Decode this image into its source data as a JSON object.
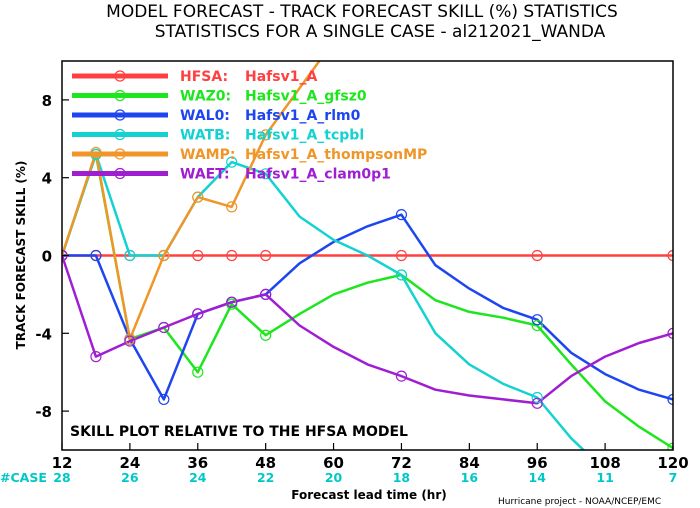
{
  "chart_data": {
    "type": "line",
    "title": "MODEL FORECAST - TRACK FORECAST SKILL (%) STATISTICS",
    "subtitle": "STATISTISCS FOR A SINGLE CASE - al212021_WANDA",
    "xlabel": "Forecast lead time (hr)",
    "ylabel": "TRACK FORECAST SKILL (%)",
    "xlim": [
      12,
      120
    ],
    "ylim": [
      -10,
      10
    ],
    "xticks": [
      12,
      24,
      36,
      48,
      60,
      72,
      84,
      96,
      108,
      120
    ],
    "yticks": [
      -8,
      -4,
      0,
      4,
      8
    ],
    "grid": false,
    "legend_position": "top-left",
    "case_label": "#CASE",
    "case_counts": [
      {
        "x": 12,
        "n": "28"
      },
      {
        "x": 24,
        "n": "26"
      },
      {
        "x": 36,
        "n": "24"
      },
      {
        "x": 48,
        "n": "22"
      },
      {
        "x": 60,
        "n": "20"
      },
      {
        "x": 72,
        "n": "18"
      },
      {
        "x": 84,
        "n": "16"
      },
      {
        "x": 96,
        "n": "14"
      },
      {
        "x": 108,
        "n": "11"
      },
      {
        "x": 120,
        "n": "7"
      }
    ],
    "annotation": "SKILL PLOT RELATIVE TO THE HFSA MODEL",
    "credit": "Hurricane project - NOAA/NCEP/EMC",
    "series": [
      {
        "code": "HFSA",
        "name": "Hafsv1_A",
        "color": "#ff4040",
        "points": [
          [
            12,
            0
          ],
          [
            18,
            0
          ],
          [
            24,
            0
          ],
          [
            30,
            0
          ],
          [
            36,
            0
          ],
          [
            42,
            0
          ],
          [
            48,
            0
          ],
          [
            60,
            0
          ],
          [
            72,
            0
          ],
          [
            96,
            0
          ],
          [
            120,
            0
          ]
        ],
        "markers": [
          12,
          18,
          24,
          30,
          36,
          42,
          48,
          72,
          96,
          120
        ]
      },
      {
        "code": "WAZ0",
        "name": "Hafsv1_A_gfsz0",
        "color": "#1ee61e",
        "points": [
          [
            12,
            0
          ],
          [
            18,
            5.2
          ],
          [
            24,
            -4.3
          ],
          [
            30,
            -3.7
          ],
          [
            36,
            -6
          ],
          [
            42,
            -2.5
          ],
          [
            48,
            -4.1
          ],
          [
            54,
            -3
          ],
          [
            60,
            -2
          ],
          [
            66,
            -1.4
          ],
          [
            72,
            -1
          ],
          [
            78,
            -2.3
          ],
          [
            84,
            -2.9
          ],
          [
            90,
            -3.2
          ],
          [
            96,
            -3.6
          ],
          [
            102,
            -5.6
          ],
          [
            108,
            -7.5
          ],
          [
            114,
            -8.8
          ],
          [
            120,
            -9.9
          ]
        ],
        "markers": [
          12,
          18,
          24,
          30,
          36,
          42,
          48,
          72,
          96,
          120
        ]
      },
      {
        "code": "WAL0",
        "name": "Hafsv1_A_rlm0",
        "color": "#1e46f0",
        "points": [
          [
            12,
            0
          ],
          [
            18,
            0
          ],
          [
            24,
            -4.3
          ],
          [
            30,
            -7.4
          ],
          [
            36,
            -3
          ],
          [
            42,
            -2.4
          ],
          [
            48,
            -2
          ],
          [
            54,
            -0.4
          ],
          [
            60,
            0.7
          ],
          [
            66,
            1.5
          ],
          [
            72,
            2.1
          ],
          [
            78,
            -0.5
          ],
          [
            84,
            -1.7
          ],
          [
            90,
            -2.7
          ],
          [
            96,
            -3.3
          ],
          [
            102,
            -5
          ],
          [
            108,
            -6.1
          ],
          [
            114,
            -6.9
          ],
          [
            120,
            -7.4
          ]
        ],
        "markers": [
          12,
          18,
          24,
          30,
          36,
          42,
          48,
          72,
          96,
          120
        ]
      },
      {
        "code": "WATB",
        "name": "Hafsv1_A_tcpbl",
        "color": "#14d2d2",
        "points": [
          [
            12,
            0
          ],
          [
            18,
            5.2
          ],
          [
            24,
            0
          ],
          [
            30,
            0
          ],
          [
            36,
            3
          ],
          [
            42,
            4.8
          ],
          [
            48,
            4.2
          ],
          [
            54,
            2
          ],
          [
            60,
            0.8
          ],
          [
            66,
            0
          ],
          [
            72,
            -1
          ],
          [
            78,
            -4
          ],
          [
            84,
            -5.6
          ],
          [
            90,
            -6.6
          ],
          [
            96,
            -7.3
          ],
          [
            102,
            -9.4
          ],
          [
            106,
            -10.5
          ]
        ],
        "markers": [
          12,
          18,
          24,
          30,
          36,
          42,
          48,
          72,
          96
        ]
      },
      {
        "code": "WAMP",
        "name": "Hafsv1_A_thompsonMP",
        "color": "#f09628",
        "points": [
          [
            12,
            0
          ],
          [
            18,
            5.3
          ],
          [
            24,
            -4.3
          ],
          [
            30,
            0
          ],
          [
            36,
            3
          ],
          [
            42,
            2.5
          ],
          [
            48,
            6.2
          ],
          [
            54,
            8.6
          ],
          [
            58,
            10.2
          ]
        ],
        "markers": [
          12,
          18,
          24,
          30,
          36,
          42,
          48
        ]
      },
      {
        "code": "WAET",
        "name": "Hafsv1_A_clam0p1",
        "color": "#a01ed2",
        "points": [
          [
            12,
            0
          ],
          [
            18,
            -5.2
          ],
          [
            24,
            -4.4
          ],
          [
            30,
            -3.7
          ],
          [
            36,
            -3
          ],
          [
            42,
            -2.4
          ],
          [
            48,
            -2
          ],
          [
            54,
            -3.6
          ],
          [
            60,
            -4.7
          ],
          [
            66,
            -5.6
          ],
          [
            72,
            -6.2
          ],
          [
            78,
            -6.9
          ],
          [
            84,
            -7.2
          ],
          [
            90,
            -7.4
          ],
          [
            96,
            -7.6
          ],
          [
            102,
            -6.2
          ],
          [
            108,
            -5.2
          ],
          [
            114,
            -4.5
          ],
          [
            120,
            -4
          ]
        ],
        "markers": [
          12,
          18,
          24,
          30,
          36,
          42,
          48,
          72,
          96,
          120
        ]
      }
    ]
  }
}
